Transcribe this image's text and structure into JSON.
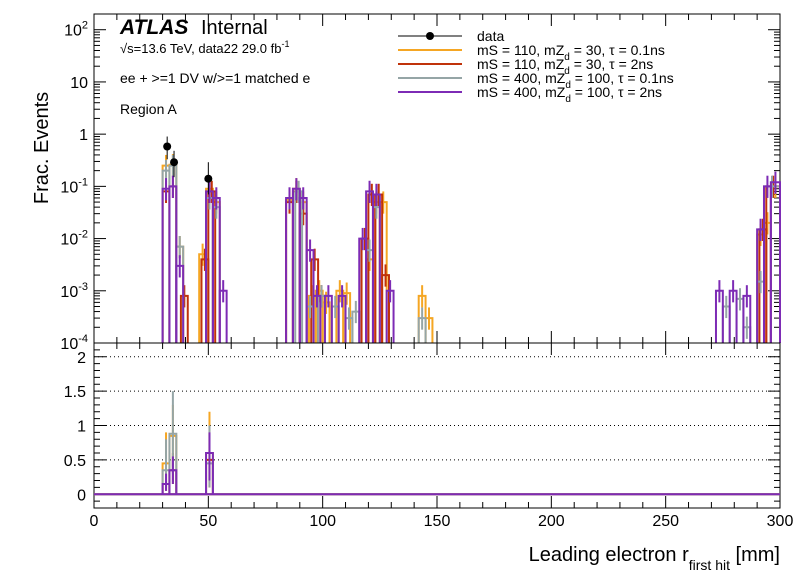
{
  "header": {
    "experiment": "ATLAS",
    "status": "Internal",
    "energy_line": "√s=13.6 TeV, data22 29.0 fb",
    "energy_sup": "-1",
    "selection": "ee + >=1 DV w/>=1 matched e",
    "region": "Region A"
  },
  "legend": [
    {
      "label": "data",
      "color": "#000000",
      "style": "marker"
    },
    {
      "label": "mS = 110, mZ",
      "sub": "d",
      "tail": " = 30, τ = 0.1ns",
      "color": "#f5a623",
      "style": "line"
    },
    {
      "label": "mS = 110, mZ",
      "sub": "d",
      "tail": " = 30, τ = 2ns",
      "color": "#c0320a",
      "style": "line"
    },
    {
      "label": "mS = 400, mZ",
      "sub": "d",
      "tail": " = 100, τ = 0.1ns",
      "color": "#95a5a6",
      "style": "line"
    },
    {
      "label": "mS = 400, mZ",
      "sub": "d",
      "tail": " = 100, τ = 2ns",
      "color": "#7d2bb5",
      "style": "line"
    }
  ],
  "chart_data": [
    {
      "type": "histogram",
      "ylabel": "Frac. Events",
      "yscale": "log",
      "ylim": [
        0.0001,
        200
      ],
      "xlim": [
        0,
        300
      ],
      "y_ticks": [
        {
          "v": 100,
          "base": "10",
          "exp": "2"
        },
        {
          "v": 10,
          "base": "10",
          "exp": ""
        },
        {
          "v": 1,
          "base": "1",
          "exp": ""
        },
        {
          "v": 0.1,
          "base": "10",
          "exp": "-1"
        },
        {
          "v": 0.01,
          "base": "10",
          "exp": "-2"
        },
        {
          "v": 0.001,
          "base": "10",
          "exp": "-3"
        },
        {
          "v": 0.0001,
          "base": "10",
          "exp": "-4"
        }
      ],
      "data_points": [
        {
          "x": 32,
          "y": 0.58,
          "err": [
            0.33,
            0.9
          ]
        },
        {
          "x": 35,
          "y": 0.29,
          "err": [
            0.15,
            0.48
          ]
        },
        {
          "x": 50,
          "y": 0.14,
          "err": [
            0.07,
            0.29
          ]
        }
      ],
      "series": [
        {
          "name": "mS = 110, mZd = 30, τ = 0.1ns",
          "color": "#f5a623",
          "bins": [
            [
              30,
              33,
              0.25
            ],
            [
              33,
              36,
              0.26
            ],
            [
              36,
              39,
              0.007
            ],
            [
              46,
              49,
              0.005
            ],
            [
              49,
              52,
              0.09
            ],
            [
              52,
              55,
              0.05
            ],
            [
              84,
              87,
              0.055
            ],
            [
              87,
              90,
              0.09
            ],
            [
              90,
              93,
              0.05
            ],
            [
              94,
              97,
              0.0008
            ],
            [
              97,
              100,
              0.001
            ],
            [
              100,
              103,
              0.0006
            ],
            [
              106,
              109,
              0.001
            ],
            [
              109,
              112,
              0.0009
            ],
            [
              119,
              122,
              0.004
            ],
            [
              122,
              125,
              0.05
            ],
            [
              125,
              128,
              0.05
            ],
            [
              142,
              145,
              0.0008
            ],
            [
              145,
              148,
              0.0003
            ],
            [
              290,
              293,
              0.012
            ],
            [
              293,
              296,
              0.02
            ],
            [
              296,
              300,
              0.1
            ]
          ]
        },
        {
          "name": "mS = 110, mZd = 30, τ = 2ns",
          "color": "#c0320a",
          "bins": [
            [
              30,
              33,
              0.08
            ],
            [
              33,
              36,
              0.1
            ],
            [
              38,
              41,
              0.0008
            ],
            [
              47,
              50,
              0.004
            ],
            [
              50,
              53,
              0.08
            ],
            [
              84,
              87,
              0.05
            ],
            [
              87,
              90,
              0.08
            ],
            [
              90,
              93,
              0.03
            ],
            [
              95,
              98,
              0.004
            ],
            [
              98,
              101,
              0.0008
            ],
            [
              117,
              120,
              0.01
            ],
            [
              120,
              123,
              0.07
            ],
            [
              123,
              126,
              0.07
            ],
            [
              126,
              129,
              0.002
            ],
            [
              291,
              294,
              0.015
            ],
            [
              294,
              300,
              0.1
            ]
          ]
        },
        {
          "name": "mS = 400, mZd = 100, τ = 0.1ns",
          "color": "#95a5a6",
          "bins": [
            [
              30,
              33,
              0.2
            ],
            [
              33,
              36,
              0.25
            ],
            [
              36,
              39,
              0.007
            ],
            [
              49,
              52,
              0.06
            ],
            [
              52,
              55,
              0.04
            ],
            [
              88,
              91,
              0.08
            ],
            [
              93,
              96,
              0.0005
            ],
            [
              98,
              101,
              0.0008
            ],
            [
              104,
              107,
              0.0005
            ],
            [
              110,
              113,
              0.0003
            ],
            [
              113,
              116,
              0.0004
            ],
            [
              119,
              122,
              0.006
            ],
            [
              122,
              125,
              0.04
            ],
            [
              142,
              145,
              0.0003
            ],
            [
              275,
              278,
              0.0005
            ],
            [
              281,
              284,
              0.0007
            ],
            [
              284,
              287,
              0.0002
            ],
            [
              290,
              293,
              0.0015
            ],
            [
              293,
              300,
              0.1
            ]
          ]
        },
        {
          "name": "mS = 400, mZd = 100, τ = 2ns",
          "color": "#7d2bb5",
          "bins": [
            [
              30,
              33,
              0.09
            ],
            [
              33,
              36,
              0.1
            ],
            [
              36,
              39,
              0.003
            ],
            [
              49,
              52,
              0.08
            ],
            [
              52,
              55,
              0.06
            ],
            [
              55,
              58,
              0.001
            ],
            [
              84,
              87,
              0.06
            ],
            [
              87,
              90,
              0.09
            ],
            [
              90,
              93,
              0.06
            ],
            [
              93,
              96,
              0.006
            ],
            [
              96,
              99,
              0.0008
            ],
            [
              101,
              104,
              0.0008
            ],
            [
              107,
              110,
              0.0008
            ],
            [
              116,
              119,
              0.01
            ],
            [
              119,
              122,
              0.08
            ],
            [
              122,
              125,
              0.07
            ],
            [
              128,
              131,
              0.001
            ],
            [
              272,
              275,
              0.001
            ],
            [
              278,
              281,
              0.001
            ],
            [
              284,
              287,
              0.0008
            ],
            [
              290,
              293,
              0.015
            ],
            [
              293,
              296,
              0.1
            ],
            [
              296,
              300,
              0.12
            ]
          ]
        }
      ]
    },
    {
      "type": "histogram",
      "ylim": [
        -0.2,
        2.2
      ],
      "xlim": [
        0,
        300
      ],
      "xlabel": "Leading electron r",
      "xlabel_sub": "first hit",
      "xlabel_unit": " [mm]",
      "y_ticks": [
        {
          "v": 0,
          "label": "0"
        },
        {
          "v": 0.5,
          "label": "0.5"
        },
        {
          "v": 1,
          "label": "1"
        },
        {
          "v": 1.5,
          "label": "1.5"
        },
        {
          "v": 2,
          "label": "2"
        }
      ],
      "x_ticks": [
        0,
        50,
        100,
        150,
        200,
        250,
        300
      ],
      "gridlines_y": [
        0.5,
        1,
        1.5,
        2
      ],
      "series": [
        {
          "name": "mS = 110, mZd = 30, τ = 0.1ns",
          "color": "#f5a623",
          "bins": [
            [
              30,
              33,
              0.45
            ],
            [
              33,
              36,
              0.85
            ],
            [
              49,
              52,
              0.6
            ]
          ],
          "err": [
            [
              31.5,
              0.1,
              0.9
            ],
            [
              34.5,
              0.4,
              1.3
            ],
            [
              50.5,
              0.1,
              1.2
            ]
          ]
        },
        {
          "name": "mS = 110, mZd = 30, τ = 2ns",
          "color": "#c0320a",
          "bins": [
            [
              30,
              33,
              0.15
            ],
            [
              33,
              36,
              0.35
            ],
            [
              49,
              52,
              0.5
            ]
          ],
          "err": [
            [
              31.5,
              0.05,
              0.3
            ],
            [
              34.5,
              0.15,
              0.6
            ],
            [
              50.5,
              0.1,
              0.9
            ]
          ]
        },
        {
          "name": "mS = 400, mZd = 100, τ = 0.1ns",
          "color": "#95a5a6",
          "bins": [
            [
              30,
              33,
              0.35
            ],
            [
              33,
              36,
              0.88
            ],
            [
              49,
              52,
              0.45
            ]
          ],
          "err": [
            [
              31.5,
              0.1,
              0.8
            ],
            [
              34.5,
              0.3,
              1.5
            ],
            [
              50.5,
              0.1,
              1.0
            ]
          ]
        },
        {
          "name": "mS = 400, mZd = 100, τ = 2ns",
          "color": "#7d2bb5",
          "bins": [
            [
              30,
              33,
              0.15
            ],
            [
              33,
              36,
              0.35
            ],
            [
              49,
              52,
              0.6
            ]
          ],
          "err": [
            [
              31.5,
              0.05,
              0.3
            ],
            [
              34.5,
              0.15,
              0.55
            ],
            [
              50.5,
              0.2,
              0.9
            ]
          ]
        }
      ]
    }
  ]
}
